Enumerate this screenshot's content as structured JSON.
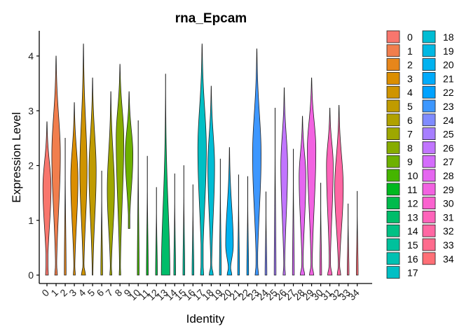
{
  "chart_data": {
    "type": "violin",
    "title": "rna_Epcam",
    "xlabel": "Identity",
    "ylabel": "Expression Level",
    "ylim": [
      -0.15,
      4.45
    ],
    "yticks": [
      0,
      1,
      2,
      3,
      4
    ],
    "grid": false,
    "legend_position": "right",
    "categories": [
      "0",
      "1",
      "2",
      "3",
      "4",
      "5",
      "6",
      "7",
      "8",
      "9",
      "10",
      "11",
      "12",
      "13",
      "14",
      "15",
      "16",
      "17",
      "18",
      "19",
      "20",
      "21",
      "22",
      "23",
      "24",
      "25",
      "26",
      "27",
      "28",
      "29",
      "30",
      "31",
      "32",
      "33",
      "34"
    ],
    "colors": [
      "#F8766D",
      "#F17E4D",
      "#E7861B",
      "#DB8E00",
      "#CF9400",
      "#C09B00",
      "#B0A100",
      "#9EA700",
      "#87AC00",
      "#6DB100",
      "#45B500",
      "#00B81F",
      "#00BB4C",
      "#00BD6A",
      "#00C084",
      "#00C19C",
      "#00C1B2",
      "#00BFC4",
      "#00BDD4",
      "#00B8E3",
      "#00B2F0",
      "#00ABFB",
      "#00A2FF",
      "#3D97FF",
      "#7F8BFF",
      "#A67EFF",
      "#C175FF",
      "#D46CFC",
      "#E566F0",
      "#F262E1",
      "#FA62CF",
      "#FF63BA",
      "#FF67A3",
      "#FF6B8D",
      "#FF6F76"
    ],
    "violins": [
      {
        "min": 0,
        "max": 2.8,
        "peak": 1.6,
        "wmax": 0.9,
        "lower": 0.25,
        "zero": 0.08
      },
      {
        "min": 0,
        "max": 4.0,
        "peak": 2.2,
        "wmax": 0.95,
        "lower": 0.15,
        "zero": 0.15
      },
      {
        "min": 0,
        "max": 2.5,
        "peak": 0,
        "wmax": 0.2,
        "lower": 0,
        "zero": 0
      },
      {
        "min": 0,
        "max": 3.15,
        "peak": 1.75,
        "wmax": 0.8,
        "lower": 0.1,
        "zero": 0.15
      },
      {
        "min": 0,
        "max": 4.22,
        "peak": 1.9,
        "wmax": 0.8,
        "lower": 0.05,
        "zero": 0.4
      },
      {
        "min": 0,
        "max": 3.6,
        "peak": 1.9,
        "wmax": 0.8,
        "lower": 0.1,
        "zero": 0
      },
      {
        "min": 0,
        "max": 1.9,
        "peak": 0,
        "wmax": 0.2,
        "lower": 0,
        "zero": 0
      },
      {
        "min": 0,
        "max": 3.35,
        "peak": 1.55,
        "wmax": 0.8,
        "lower": 0.1,
        "zero": 0.15
      },
      {
        "min": 0,
        "max": 3.85,
        "peak": 2.5,
        "wmax": 0.85,
        "lower": 0.08,
        "zero": 0.1
      },
      {
        "min": 0.85,
        "max": 3.35,
        "peak": 2.2,
        "wmax": 0.85,
        "lower": 0.2,
        "zero": 0
      },
      {
        "min": 0,
        "max": 2.82,
        "peak": 0,
        "wmax": 0.2,
        "lower": 0,
        "zero": 0
      },
      {
        "min": 0,
        "max": 2.17,
        "peak": 0,
        "wmax": 0.2,
        "lower": 0,
        "zero": 0
      },
      {
        "min": 0,
        "max": 1.6,
        "peak": 0,
        "wmax": 0.2,
        "lower": 0,
        "zero": 0
      },
      {
        "min": 0,
        "max": 3.67,
        "peak": 0,
        "wmax": 0.95,
        "lower": 0,
        "zero": 0.95
      },
      {
        "min": 0,
        "max": 1.85,
        "peak": 0,
        "wmax": 0.2,
        "lower": 0,
        "zero": 0
      },
      {
        "min": 0,
        "max": 2.0,
        "peak": 0,
        "wmax": 0.2,
        "lower": 0,
        "zero": 0
      },
      {
        "min": 0,
        "max": 1.65,
        "peak": 0,
        "wmax": 0.2,
        "lower": 0,
        "zero": 0
      },
      {
        "min": 0,
        "max": 4.22,
        "peak": 2.3,
        "wmax": 0.95,
        "lower": 0.25,
        "zero": 0.12
      },
      {
        "min": 0,
        "max": 3.45,
        "peak": 2.0,
        "wmax": 0.75,
        "lower": 0.15,
        "zero": 0.35
      },
      {
        "min": 0,
        "max": 2.12,
        "peak": 0,
        "wmax": 0.2,
        "lower": 0,
        "zero": 0
      },
      {
        "min": 0,
        "max": 2.33,
        "peak": 0.55,
        "wmax": 0.85,
        "lower": 0.2,
        "zero": 0.35
      },
      {
        "min": 0,
        "max": 1.83,
        "peak": 0,
        "wmax": 0.2,
        "lower": 0,
        "zero": 0
      },
      {
        "min": 0,
        "max": 1.8,
        "peak": 0,
        "wmax": 0.2,
        "lower": 0,
        "zero": 0
      },
      {
        "min": 0,
        "max": 4.13,
        "peak": 2.2,
        "wmax": 0.95,
        "lower": 0.2,
        "zero": 0.2
      },
      {
        "min": 0,
        "max": 1.52,
        "peak": 0,
        "wmax": 0.2,
        "lower": 0,
        "zero": 0
      },
      {
        "min": 0,
        "max": 3.05,
        "peak": 0,
        "wmax": 0.2,
        "lower": 0,
        "zero": 0
      },
      {
        "min": 0,
        "max": 3.42,
        "peak": 2.0,
        "wmax": 0.75,
        "lower": 0.15,
        "zero": 0.15
      },
      {
        "min": 0,
        "max": 2.3,
        "peak": 0,
        "wmax": 0.2,
        "lower": 0,
        "zero": 0
      },
      {
        "min": 0,
        "max": 2.9,
        "peak": 1.8,
        "wmax": 0.75,
        "lower": 0.2,
        "zero": 0.35
      },
      {
        "min": 0,
        "max": 3.6,
        "peak": 2.3,
        "wmax": 0.95,
        "lower": 0.15,
        "zero": 0.35
      },
      {
        "min": 0,
        "max": 1.68,
        "peak": 0,
        "wmax": 0.2,
        "lower": 0,
        "zero": 0
      },
      {
        "min": 0,
        "max": 3.05,
        "peak": 2.0,
        "wmax": 0.75,
        "lower": 0.2,
        "zero": 0.35
      },
      {
        "min": 0,
        "max": 3.1,
        "peak": 1.6,
        "wmax": 0.95,
        "lower": 0.15,
        "zero": 0.25
      },
      {
        "min": 0,
        "max": 1.3,
        "peak": 0,
        "wmax": 0.2,
        "lower": 0,
        "zero": 0
      },
      {
        "min": 0,
        "max": 1.53,
        "peak": 0,
        "wmax": 0.2,
        "lower": 0,
        "zero": 0
      }
    ]
  }
}
